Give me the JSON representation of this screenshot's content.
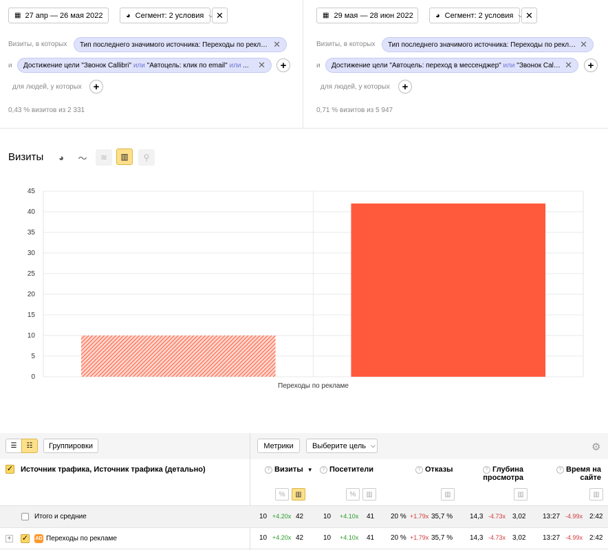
{
  "left_segment": {
    "date_range": "27 апр — 26 мая 2022",
    "segment_label": "Сегмент: 2 условия",
    "visits_label": "Визиты, в которых",
    "condition1": "Тип последнего значимого источника: Переходы по рекламе",
    "and_label": "и",
    "condition2_a": "Достижение цели \"Звонок Callibri\"",
    "condition2_or1": "или",
    "condition2_b": "\"Автоцель: клик по email\"",
    "condition2_or2": "или",
    "condition2_c": "...",
    "people_label": "для людей, у которых",
    "summary": "0,43 % визитов из 2 331"
  },
  "right_segment": {
    "date_range": "29 мая — 28 июн 2022",
    "segment_label": "Сегмент: 2 условия",
    "visits_label": "Визиты, в которых",
    "condition1": "Тип последнего значимого источника: Переходы по рекламе",
    "and_label": "и",
    "condition2_a": "Достижение цели \"Автоцель: переход в мессенджер\"",
    "condition2_or1": "или",
    "condition2_b": "\"Звонок Callibri\"",
    "people_label": "для людей, у которых",
    "summary": "0,71 % визитов из 5 947"
  },
  "chart_section": {
    "title": "Визиты"
  },
  "chart_data": {
    "type": "bar",
    "categories": [
      "Переходы по рекламе"
    ],
    "series": [
      {
        "values": [
          10
        ],
        "color": "#ff5a3c",
        "pattern": "hatched"
      },
      {
        "values": [
          42
        ],
        "color": "#ff5a3c",
        "pattern": "solid"
      }
    ],
    "ylim": [
      0,
      45
    ],
    "yticks": [
      "0",
      "5",
      "10",
      "15",
      "20",
      "25",
      "30",
      "35",
      "40",
      "45"
    ],
    "grid": true
  },
  "table": {
    "groupings_button": "Группировки",
    "metrics_button": "Метрики",
    "goal_select": "Выберите цель",
    "dimension_header": "Источник трафика, Источник трафика (детально)",
    "columns": [
      {
        "label": "Визиты",
        "sort": "▼"
      },
      {
        "label": "Посетители"
      },
      {
        "label": "Отказы"
      },
      {
        "label1": "Глубина",
        "label2": "просмотра"
      },
      {
        "label1": "Время на",
        "label2": "сайте"
      }
    ],
    "pct_symbol": "%",
    "rows": [
      {
        "label": "Итого и средние",
        "visits": [
          "10",
          "+4.20x",
          "42"
        ],
        "visitors": [
          "10",
          "+4.10x",
          "41"
        ],
        "bounce": [
          "20 %",
          "+1.79x",
          "35,7 %"
        ],
        "depth": [
          "14,3",
          "-4.73x",
          "3,02"
        ],
        "time": [
          "13:27",
          "-4.99x",
          "2:42"
        ]
      },
      {
        "label": "Переходы по рекламе",
        "badge": "AD",
        "expand": "+",
        "visits": [
          "10",
          "+4.20x",
          "42"
        ],
        "visitors": [
          "10",
          "+4.10x",
          "41"
        ],
        "bounce": [
          "20 %",
          "+1.79x",
          "35,7 %"
        ],
        "depth": [
          "14,3",
          "-4.73x",
          "3,02"
        ],
        "time": [
          "13:27",
          "-4.99x",
          "2:42"
        ]
      }
    ]
  },
  "colors": {
    "bar": "#ff5a3c",
    "chip_bg": "#dfe2fb",
    "or_text": "#7176d6",
    "active_toggle": "#ffe08a",
    "positive": "#2a9d2a",
    "negative": "#d13b3b"
  }
}
